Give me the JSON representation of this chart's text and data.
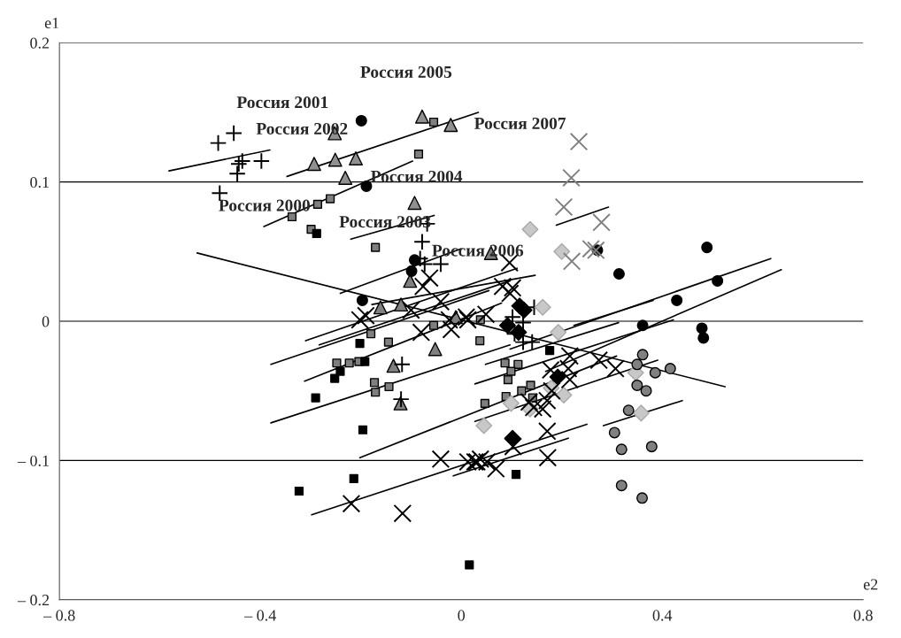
{
  "chart_data": {
    "type": "scatter",
    "xlabel": "e2",
    "ylabel": "e1",
    "xlim": [
      -0.8,
      0.8
    ],
    "ylim": [
      -0.2,
      0.2
    ],
    "xticks": [
      {
        "value": -0.8,
        "label": "– 0.8"
      },
      {
        "value": -0.4,
        "label": "– 0.4"
      },
      0,
      0.4,
      0.8
    ],
    "yticks": [
      {
        "value": -0.2,
        "label": "– 0.2"
      },
      {
        "value": -0.1,
        "label": "– 0.1"
      },
      0,
      0.1,
      0.2
    ],
    "grid": "y",
    "legend": false,
    "annotations": [
      {
        "text": "Россия 2005",
        "x": -0.078,
        "y": 0.147
      },
      {
        "text": "Россия 2001",
        "x": -0.252,
        "y": 0.135
      },
      {
        "text": "Россия 2007",
        "x": -0.021,
        "y": 0.141
      },
      {
        "text": "Россия 2002",
        "x": -0.251,
        "y": 0.116
      },
      {
        "text": "Россия 2004",
        "x": -0.21,
        "y": 0.117
      },
      {
        "text": "Россия 2000",
        "x": -0.293,
        "y": 0.113
      },
      {
        "text": "Россия 2003",
        "x": -0.231,
        "y": 0.103
      },
      {
        "text": "Россия 2006",
        "x": -0.093,
        "y": 0.085
      }
    ],
    "series": [
      {
        "type": "line",
        "color": "#000000",
        "x": [
          -0.347,
          0.034
        ],
        "values": [
          0.104,
          0.15
        ]
      },
      {
        "type": "line",
        "color": "#000000",
        "x": [
          -0.526,
          0.525
        ],
        "values": [
          0.049,
          -0.047
        ]
      },
      {
        "type": "line",
        "color": "#000000",
        "x": [
          -0.582,
          -0.381
        ],
        "values": [
          0.108,
          0.123
        ]
      },
      {
        "type": "line",
        "color": "#000000",
        "x": [
          -0.393,
          -0.097
        ],
        "values": [
          0.068,
          0.115
        ]
      },
      {
        "type": "line",
        "color": "#000000",
        "x": [
          -0.22,
          -0.054
        ],
        "values": [
          0.059,
          0.076
        ]
      },
      {
        "type": "line",
        "color": "#000000",
        "x": [
          -0.241,
          -0.001
        ],
        "values": [
          0.02,
          0.052
        ]
      },
      {
        "type": "line",
        "color": "#000000",
        "x": [
          0.189,
          0.293
        ],
        "values": [
          0.069,
          0.082
        ]
      },
      {
        "type": "line",
        "color": "#000000",
        "x": [
          -0.379,
          0.055
        ],
        "values": [
          -0.031,
          0.022
        ]
      },
      {
        "type": "line",
        "color": "#000000",
        "x": [
          -0.31,
          0.111
        ],
        "values": [
          -0.014,
          0.038
        ]
      },
      {
        "type": "line",
        "color": "#000000",
        "x": [
          -0.312,
          0.08
        ],
        "values": [
          -0.043,
          0.013
        ]
      },
      {
        "type": "line",
        "color": "#000000",
        "x": [
          -0.379,
          0.097
        ],
        "values": [
          -0.073,
          -0.017
        ]
      },
      {
        "type": "line",
        "color": "#000000",
        "x": [
          -0.202,
          0.309
        ],
        "values": [
          -0.098,
          -0.025
        ]
      },
      {
        "type": "line",
        "color": "#000000",
        "x": [
          -0.298,
          0.25
        ],
        "values": [
          -0.139,
          -0.074
        ]
      },
      {
        "type": "line",
        "color": "#000000",
        "x": [
          -0.016,
          0.213
        ],
        "values": [
          -0.111,
          -0.084
        ]
      },
      {
        "type": "line",
        "color": "#000000",
        "x": [
          0.048,
          0.313
        ],
        "values": [
          -0.031,
          -0.001
        ]
      },
      {
        "type": "line",
        "color": "#000000",
        "x": [
          0.027,
          0.422
        ],
        "values": [
          -0.045,
          0.001
        ]
      },
      {
        "type": "line",
        "color": "#000000",
        "x": [
          0.027,
          0.391
        ],
        "values": [
          -0.072,
          -0.028
        ]
      },
      {
        "type": "line",
        "color": "#000000",
        "x": [
          0.283,
          0.44
        ],
        "values": [
          -0.075,
          -0.057
        ]
      },
      {
        "type": "line",
        "color": "#000000",
        "x": [
          0.097,
          0.616
        ],
        "values": [
          -0.02,
          0.045
        ]
      },
      {
        "type": "line",
        "color": "#000000",
        "x": [
          0.168,
          0.637
        ],
        "values": [
          -0.036,
          0.037
        ]
      },
      {
        "type": "line",
        "color": "#000000",
        "x": [
          0.224,
          0.382
        ],
        "values": [
          -0.003,
          0.015
        ]
      },
      {
        "type": "line",
        "color": "#000000",
        "x": [
          -0.283,
          0.097
        ],
        "values": [
          -0.017,
          0.029
        ]
      },
      {
        "type": "line",
        "color": "#000000",
        "x": [
          -0.178,
          0.147
        ],
        "values": [
          0.012,
          0.033
        ]
      },
      {
        "marker": "triangle",
        "color": "#909090",
        "x": [
          -0.252,
          -0.078,
          -0.021,
          -0.293,
          -0.251,
          -0.21,
          -0.231,
          -0.093
        ],
        "values": [
          0.135,
          0.147,
          0.141,
          0.113,
          0.116,
          0.117,
          0.103,
          0.085
        ]
      },
      {
        "marker": "triangle",
        "color": "#7f7f7f",
        "x": [
          0.059,
          -0.102,
          -0.161,
          -0.12,
          -0.011,
          -0.052,
          -0.135,
          -0.121
        ],
        "values": [
          0.049,
          0.029,
          0.01,
          0.012,
          0.003,
          -0.02,
          -0.032,
          -0.059
        ]
      },
      {
        "marker": "plus",
        "color": "#000000",
        "x": [
          -0.484,
          -0.453,
          -0.443,
          -0.436,
          -0.398,
          -0.446,
          -0.481,
          -0.068,
          -0.078,
          -0.082,
          -0.073,
          -0.041,
          -0.118,
          0.102,
          0.123,
          0.145,
          0.106,
          0.123,
          0.141,
          -0.12
        ],
        "values": [
          0.128,
          0.135,
          0.113,
          0.115,
          0.115,
          0.106,
          0.092,
          0.07,
          0.057,
          0.045,
          0.041,
          0.041,
          -0.031,
          0.003,
          -0.001,
          0.01,
          -0.009,
          -0.015,
          -0.015,
          -0.056
        ]
      },
      {
        "marker": "circle",
        "color": "#000000",
        "x": [
          -0.199,
          -0.189,
          -0.197,
          -0.093,
          -0.099,
          0.271,
          0.314,
          0.489,
          0.51,
          0.429,
          0.361,
          0.479,
          0.482
        ],
        "values": [
          0.144,
          0.097,
          0.015,
          0.044,
          0.036,
          0.051,
          0.034,
          0.053,
          0.029,
          0.015,
          -0.003,
          -0.005,
          -0.012
        ]
      },
      {
        "marker": "square",
        "color": "#7f7f7f",
        "x": [
          -0.337,
          -0.286,
          -0.261,
          -0.299,
          -0.055,
          -0.085,
          -0.171,
          -0.055,
          0.038,
          0.037,
          -0.18,
          -0.145,
          -0.248,
          -0.223,
          -0.204,
          -0.173,
          -0.171,
          -0.144
        ],
        "values": [
          0.075,
          0.084,
          0.088,
          0.066,
          0.143,
          0.12,
          0.053,
          -0.003,
          0.001,
          -0.014,
          -0.009,
          -0.015,
          -0.03,
          -0.03,
          -0.029,
          -0.044,
          -0.051,
          -0.047
        ]
      },
      {
        "marker": "square",
        "color": "#000000",
        "x": [
          -0.288,
          -0.202,
          -0.241,
          -0.252,
          -0.192,
          -0.29,
          -0.196,
          -0.214,
          -0.323
        ],
        "values": [
          0.063,
          -0.016,
          -0.036,
          -0.041,
          -0.029,
          -0.055,
          -0.078,
          -0.113,
          -0.122
        ]
      },
      {
        "marker": "square",
        "color": "#808080",
        "x": [
          0.087,
          0.113,
          0.099,
          0.093,
          0.138,
          0.12,
          0.089,
          0.047,
          0.142
        ],
        "values": [
          -0.03,
          -0.031,
          -0.036,
          -0.042,
          -0.046,
          -0.05,
          -0.054,
          -0.059,
          -0.055
        ]
      },
      {
        "marker": "diamond",
        "color": "#000000",
        "x": [
          0.116,
          0.125,
          0.092,
          0.114,
          0.192,
          0.102
        ],
        "values": [
          0.011,
          0.008,
          -0.003,
          -0.008,
          -0.04,
          -0.084
        ]
      },
      {
        "marker": "diamond",
        "color": "#c8c8c8",
        "x": [
          0.137,
          0.2,
          0.162,
          0.193,
          0.347,
          0.204,
          0.179,
          0.099,
          0.137,
          0.045,
          0.358
        ],
        "values": [
          0.066,
          0.05,
          0.01,
          -0.008,
          -0.037,
          -0.053,
          -0.048,
          -0.059,
          -0.063,
          -0.075,
          -0.066
        ]
      },
      {
        "marker": "square",
        "color": "#000000",
        "x": [
          0.176,
          0.109,
          0.016
        ],
        "values": [
          -0.021,
          -0.11,
          -0.175
        ]
      },
      {
        "marker": "circle",
        "color": "#808080",
        "x": [
          0.361,
          0.35,
          0.386,
          0.416,
          0.35,
          0.368,
          0.333,
          0.305,
          0.319,
          0.379,
          0.319,
          0.36
        ],
        "values": [
          -0.024,
          -0.031,
          -0.037,
          -0.034,
          -0.046,
          -0.05,
          -0.064,
          -0.08,
          -0.092,
          -0.09,
          -0.118,
          -0.127
        ]
      },
      {
        "marker": "cross",
        "color": "#808080",
        "x": [
          0.234,
          0.219,
          0.204,
          0.279,
          0.22,
          0.258,
          0.268
        ],
        "values": [
          0.129,
          0.103,
          0.082,
          0.071,
          0.043,
          0.052,
          0.051
        ]
      },
      {
        "marker": "cross",
        "color": "#000000",
        "x": [
          0.096,
          0.082,
          0.102,
          0.097,
          -0.08,
          -0.063,
          0.216,
          0.213,
          0.216,
          0.178,
          0.274,
          0.307,
          0.18,
          0.171,
          0.135,
          0.144,
          0.027,
          0.051,
          -0.117,
          0.013
        ],
        "values": [
          0.042,
          0.025,
          0.024,
          0.02,
          -0.008,
          0.031,
          -0.025,
          -0.034,
          -0.042,
          -0.035,
          -0.028,
          -0.034,
          -0.05,
          -0.057,
          -0.058,
          -0.062,
          -0.101,
          -0.101,
          -0.138,
          -0.101
        ]
      },
      {
        "marker": "cross",
        "color": "#000000",
        "x": [
          -0.202,
          -0.19,
          -0.041,
          0.031,
          -0.219,
          -0.02,
          0.013,
          -0.1,
          -0.041,
          -0.024,
          0.01,
          0.049,
          -0.076,
          0.171,
          0.172,
          0.103,
          0.069,
          0.038,
          0.162
        ],
        "values": [
          0.001,
          0.004,
          -0.099,
          -0.101,
          -0.131,
          -0.006,
          0.001,
          0.008,
          0.014,
          0.001,
          0.003,
          0.005,
          0.025,
          -0.079,
          -0.098,
          -0.09,
          -0.106,
          -0.099,
          -0.063
        ]
      }
    ]
  }
}
